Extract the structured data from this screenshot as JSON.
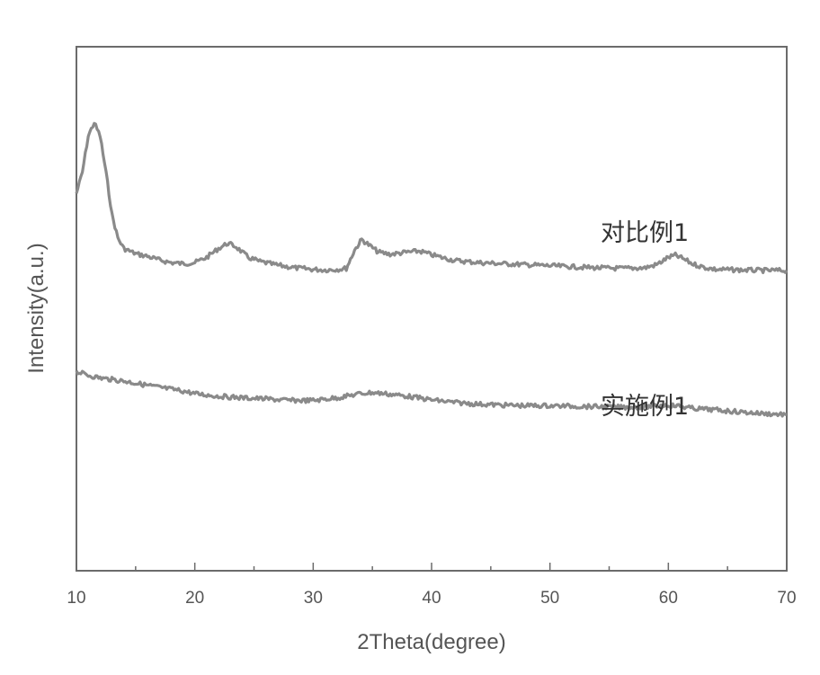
{
  "chart_data": {
    "type": "line",
    "xlabel": "2Theta(degree)",
    "ylabel": "Intensity(a.u.)",
    "xlim": [
      10,
      70
    ],
    "x_ticks": [
      10,
      20,
      30,
      40,
      50,
      60,
      70
    ],
    "y_ticks_shown": false,
    "grid": false,
    "legend": "inline labels at right",
    "line_color": "#8a8a8a",
    "series": [
      {
        "name": "对比例1",
        "points": [
          [
            10,
            0.72
          ],
          [
            10.5,
            0.76
          ],
          [
            11,
            0.83
          ],
          [
            11.5,
            0.855
          ],
          [
            12,
            0.83
          ],
          [
            12.5,
            0.76
          ],
          [
            13,
            0.68
          ],
          [
            13.5,
            0.635
          ],
          [
            14,
            0.615
          ],
          [
            15,
            0.605
          ],
          [
            16,
            0.6
          ],
          [
            17,
            0.593
          ],
          [
            18,
            0.588
          ],
          [
            19,
            0.586
          ],
          [
            20,
            0.588
          ],
          [
            21,
            0.598
          ],
          [
            22,
            0.615
          ],
          [
            22.8,
            0.625
          ],
          [
            23.5,
            0.618
          ],
          [
            24.5,
            0.598
          ],
          [
            25.5,
            0.59
          ],
          [
            27,
            0.583
          ],
          [
            28.5,
            0.578
          ],
          [
            30,
            0.575
          ],
          [
            31,
            0.574
          ],
          [
            32,
            0.575
          ],
          [
            32.8,
            0.577
          ],
          [
            33.5,
            0.612
          ],
          [
            34.1,
            0.632
          ],
          [
            34.8,
            0.62
          ],
          [
            35.5,
            0.608
          ],
          [
            36.5,
            0.604
          ],
          [
            38,
            0.608
          ],
          [
            39,
            0.61
          ],
          [
            40,
            0.603
          ],
          [
            41,
            0.597
          ],
          [
            42,
            0.592
          ],
          [
            44,
            0.588
          ],
          [
            46,
            0.586
          ],
          [
            48,
            0.584
          ],
          [
            50,
            0.582
          ],
          [
            52,
            0.58
          ],
          [
            54,
            0.578
          ],
          [
            56,
            0.577
          ],
          [
            58,
            0.578
          ],
          [
            59,
            0.584
          ],
          [
            60,
            0.598
          ],
          [
            60.6,
            0.602
          ],
          [
            61.2,
            0.596
          ],
          [
            62,
            0.586
          ],
          [
            63,
            0.579
          ],
          [
            64,
            0.575
          ],
          [
            66,
            0.574
          ],
          [
            68,
            0.573
          ],
          [
            70,
            0.573
          ]
        ]
      },
      {
        "name": "实施例1",
        "points": [
          [
            10,
            0.38
          ],
          [
            11,
            0.373
          ],
          [
            12,
            0.368
          ],
          [
            13,
            0.365
          ],
          [
            14,
            0.362
          ],
          [
            15,
            0.358
          ],
          [
            17,
            0.35
          ],
          [
            19,
            0.343
          ],
          [
            20,
            0.338
          ],
          [
            22,
            0.333
          ],
          [
            24,
            0.33
          ],
          [
            26,
            0.328
          ],
          [
            28,
            0.325
          ],
          [
            30,
            0.325
          ],
          [
            32,
            0.33
          ],
          [
            34,
            0.338
          ],
          [
            35,
            0.34
          ],
          [
            36,
            0.338
          ],
          [
            38,
            0.333
          ],
          [
            40,
            0.326
          ],
          [
            42,
            0.321
          ],
          [
            44,
            0.318
          ],
          [
            46,
            0.316
          ],
          [
            48,
            0.315
          ],
          [
            50,
            0.315
          ],
          [
            52,
            0.314
          ],
          [
            54,
            0.313
          ],
          [
            56,
            0.312
          ],
          [
            58,
            0.313
          ],
          [
            60,
            0.316
          ],
          [
            61,
            0.314
          ],
          [
            62,
            0.31
          ],
          [
            64,
            0.307
          ],
          [
            66,
            0.303
          ],
          [
            68,
            0.3
          ],
          [
            70,
            0.298
          ]
        ]
      }
    ]
  }
}
